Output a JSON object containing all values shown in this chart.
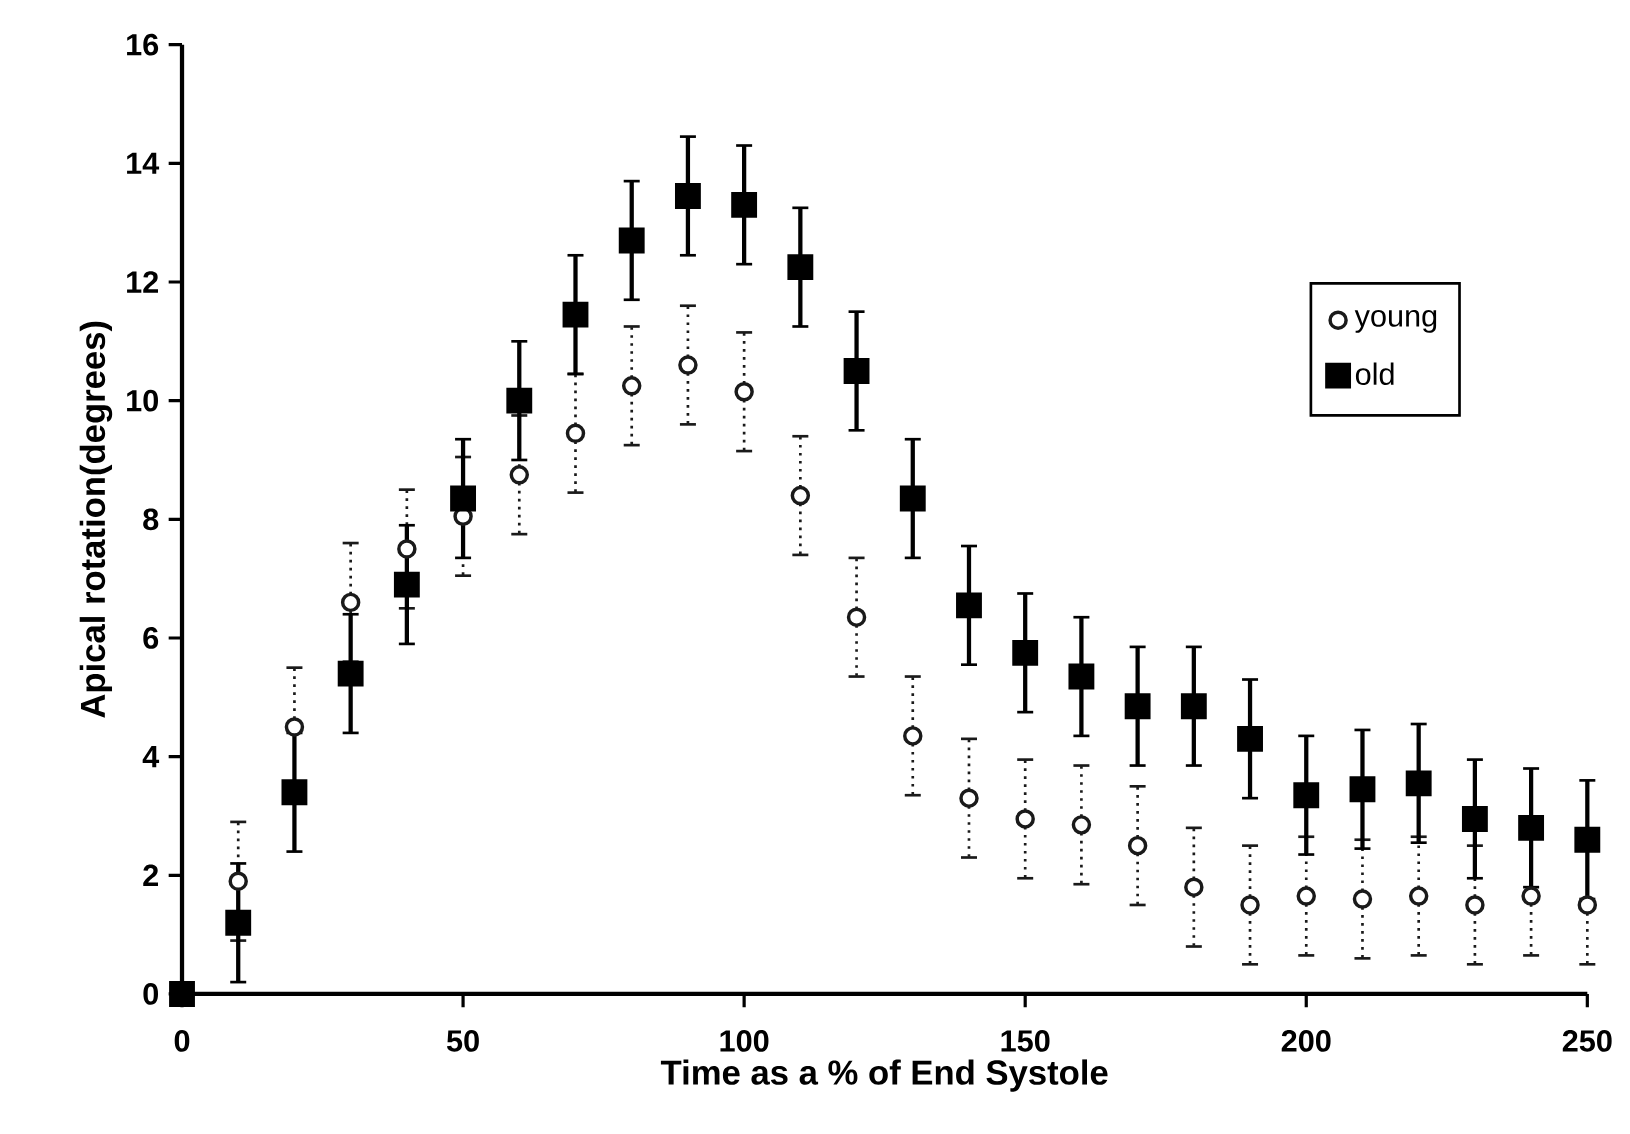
{
  "chart_data": {
    "type": "scatter",
    "xlabel": "Time as a % of End Systole",
    "ylabel": "Apical rotation(degrees)",
    "x": [
      0,
      10,
      20,
      30,
      40,
      50,
      60,
      70,
      80,
      90,
      100,
      110,
      120,
      130,
      140,
      150,
      160,
      170,
      180,
      190,
      200,
      210,
      220,
      230,
      240,
      250
    ],
    "series": [
      {
        "name": "young",
        "color": "#1a1a1a",
        "marker": "circle",
        "values": [
          null,
          1.9,
          4.5,
          6.6,
          7.5,
          8.05,
          8.75,
          9.45,
          10.25,
          10.6,
          10.15,
          8.4,
          6.35,
          4.35,
          3.3,
          2.95,
          2.85,
          2.5,
          1.8,
          1.5,
          1.65,
          1.6,
          1.65,
          1.5,
          1.65,
          1.5
        ],
        "errors": [
          null,
          1,
          1,
          1,
          1,
          1,
          1,
          1,
          1,
          1,
          1,
          1,
          1,
          1,
          1,
          1,
          1,
          1,
          1,
          1,
          1,
          1,
          1,
          1,
          1,
          1
        ]
      },
      {
        "name": "old",
        "color": "#000000",
        "marker": "square",
        "values": [
          0,
          1.2,
          3.4,
          5.4,
          6.9,
          8.35,
          10.0,
          11.45,
          12.7,
          13.45,
          13.3,
          12.25,
          10.5,
          8.35,
          6.55,
          5.75,
          5.35,
          4.85,
          4.85,
          4.3,
          3.35,
          3.45,
          3.55,
          2.95,
          2.8,
          2.6
        ],
        "errors": [
          null,
          1,
          1,
          1,
          1,
          1,
          1,
          1,
          1,
          1,
          1,
          1,
          1,
          1,
          1,
          1,
          1,
          1,
          1,
          1,
          1,
          1,
          1,
          1,
          1,
          1
        ]
      }
    ],
    "xlim": [
      0,
      250
    ],
    "xticks": [
      0,
      50,
      100,
      150,
      200,
      250
    ],
    "ylim": [
      0,
      16
    ],
    "yticks": [
      0,
      2,
      4,
      6,
      8,
      10,
      12,
      14,
      16
    ],
    "legend": "top right"
  }
}
